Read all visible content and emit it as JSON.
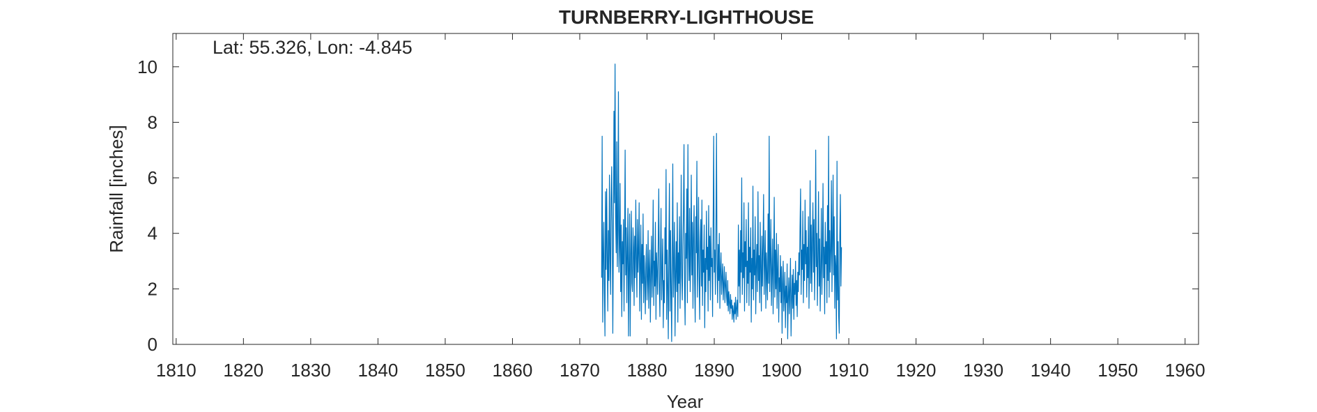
{
  "chart_data": {
    "type": "line",
    "title": "TURNBERRY-LIGHTHOUSE",
    "annotation": "Lat: 55.326, Lon: -4.845",
    "xlabel": "Year",
    "ylabel": "Rainfall [inches]",
    "xlim": [
      1809.5,
      1962
    ],
    "ylim": [
      0,
      11.2
    ],
    "xticks": [
      1810,
      1820,
      1830,
      1840,
      1850,
      1860,
      1870,
      1880,
      1890,
      1900,
      1910,
      1920,
      1930,
      1940,
      1950,
      1960
    ],
    "yticks": [
      0,
      2,
      4,
      6,
      8,
      10
    ],
    "grid": false,
    "line_color": "#0072BD",
    "series": [
      {
        "x_start": 1873.25,
        "x_step_months": 1,
        "values": [
          2.4,
          7.5,
          0.8,
          3.1,
          4.4,
          1.9,
          0.3,
          5.5,
          2.7,
          5.6,
          3.3,
          1.2,
          4.1,
          2.3,
          6.1,
          3.2,
          1.8,
          5.2,
          6.4,
          4.2,
          0.4,
          3.6,
          8.4,
          5.1,
          10.1,
          4.6,
          3.3,
          7.3,
          2.8,
          4.1,
          9.1,
          2.6,
          3.5,
          5.8,
          1.9,
          4.3,
          1.0,
          3.7,
          2.9,
          4.5,
          1.2,
          3.8,
          7.0,
          2.5,
          4.2,
          1.5,
          3.3,
          4.9,
          0.3,
          2.8,
          4.7,
          0.3,
          3.1,
          4.8,
          2.2,
          1.9,
          4.2,
          3.5,
          1.4,
          3.9,
          2.4,
          5.2,
          3.1,
          1.7,
          4.5,
          2.6,
          3.3,
          5.1,
          1.2,
          2.8,
          4.3,
          0.9,
          3.6,
          2.2,
          4.7,
          1.5,
          3.2,
          2.4,
          1.1,
          2.9,
          3.6,
          1.6,
          2.3,
          4.1,
          1.3,
          2.7,
          3.4,
          0.8,
          2.5,
          3.9,
          1.7,
          2.8,
          5.2,
          1.4,
          3.0,
          2.1,
          4.4,
          0.9,
          3.3,
          2.6,
          1.8,
          3.7,
          5.6,
          2.2,
          1.0,
          3.1,
          4.9,
          1.6,
          2.6,
          3.8,
          0.6,
          2.3,
          1.5,
          4.2,
          2.9,
          6.3,
          0.9,
          3.4,
          2.1,
          0.2,
          3.6,
          5.8,
          1.2,
          4.1,
          2.0,
          0.1,
          3.2,
          6.5,
          1.7,
          2.8,
          4.4,
          0.3,
          2.5,
          3.7,
          1.9,
          5.1,
          0.8,
          3.3,
          2.2,
          4.6,
          1.3,
          2.9,
          6.1,
          2.4,
          1.6,
          3.5,
          4.8,
          7.2,
          2.1,
          0.7,
          4.0,
          3.1,
          5.6,
          1.5,
          7.2,
          3.6,
          2.3,
          4.9,
          1.9,
          3.2,
          6.1,
          2.5,
          4.4,
          1.3,
          3.8,
          5.0,
          2.2,
          0.8,
          4.6,
          3.3,
          6.6,
          1.7,
          3.0,
          5.3,
          2.4,
          0.9,
          3.7,
          4.5,
          2.1,
          5.2,
          1.4,
          3.4,
          2.6,
          4.3,
          0.6,
          3.1,
          1.9,
          4.8,
          2.7,
          3.5,
          1.2,
          5.0,
          2.3,
          3.9,
          1.6,
          4.2,
          2.8,
          3.1,
          1.0,
          4.4,
          7.5,
          2.6,
          3.4,
          1.8,
          4.1,
          7.6,
          2.9,
          1.5,
          3.6,
          2.3,
          4.0,
          1.3,
          2.7,
          3.3,
          1.8,
          2.4,
          2.9,
          1.6,
          2.2,
          2.8,
          1.5,
          2.1,
          2.6,
          1.7,
          1.4,
          2.3,
          1.2,
          1.9,
          1.5,
          1.1,
          1.8,
          1.3,
          1.6,
          0.9,
          1.4,
          1.2,
          0.8,
          1.5,
          1.1,
          1.7,
          0.9,
          1.3,
          1.6,
          1.0,
          4.3,
          2.1,
          3.4,
          1.5,
          4.1,
          2.6,
          6.0,
          1.8,
          3.3,
          2.4,
          5.1,
          1.2,
          3.7,
          2.8,
          4.5,
          1.5,
          3.0,
          2.2,
          5.1,
          1.4,
          3.5,
          2.6,
          4.2,
          0.8,
          3.1,
          2.0,
          5.7,
          1.6,
          3.4,
          2.5,
          4.6,
          1.1,
          2.8,
          3.6,
          1.9,
          5.5,
          2.3,
          3.2,
          1.5,
          4.4,
          2.7,
          1.2,
          3.9,
          2.1,
          3.5,
          5.4,
          1.8,
          2.9,
          4.1,
          1.3,
          3.3,
          2.4,
          1.6,
          4.7,
          2.2,
          7.5,
          1.9,
          3.1,
          4.5,
          1.4,
          2.6,
          3.8,
          1.1,
          2.9,
          5.3,
          1.7,
          3.4,
          2.0,
          4.0,
          1.3,
          2.7,
          3.6,
          0.8,
          2.4,
          1.9,
          3.2,
          1.5,
          2.8,
          0.4,
          2.2,
          3.0,
          1.2,
          1.8,
          2.6,
          0.6,
          2.1,
          1.5,
          2.9,
          0.2,
          1.7,
          2.4,
          1.1,
          2.0,
          3.1,
          0.3,
          1.6,
          2.5,
          1.3,
          2.7,
          0.9,
          2.2,
          1.8,
          3.0,
          1.4,
          2.3,
          1.0,
          2.6,
          1.9,
          3.3,
          2.5,
          4.2,
          5.6,
          1.8,
          3.4,
          2.7,
          4.8,
          1.5,
          3.6,
          2.3,
          5.2,
          2.9,
          4.1,
          1.7,
          3.5,
          2.4,
          4.6,
          1.3,
          3.0,
          5.9,
          2.2,
          4.3,
          1.9,
          3.7,
          5.1,
          2.6,
          4.5,
          1.6,
          3.3,
          7.0,
          2.8,
          4.0,
          1.4,
          3.2,
          5.5,
          2.1,
          3.8,
          1.2,
          2.7,
          4.9,
          1.8,
          3.1,
          5.8,
          2.4,
          3.5,
          1.1,
          4.4,
          2.9,
          3.7,
          1.5,
          5.0,
          2.3,
          7.5,
          1.7,
          4.1,
          2.6,
          3.4,
          5.9,
          1.9,
          3.8,
          6.1,
          2.5,
          4.6,
          1.3,
          3.2,
          2.8,
          0.2,
          6.6,
          1.6,
          3.7,
          1.0,
          0.4,
          3.9,
          5.4,
          2.1,
          3.5
        ]
      }
    ]
  }
}
